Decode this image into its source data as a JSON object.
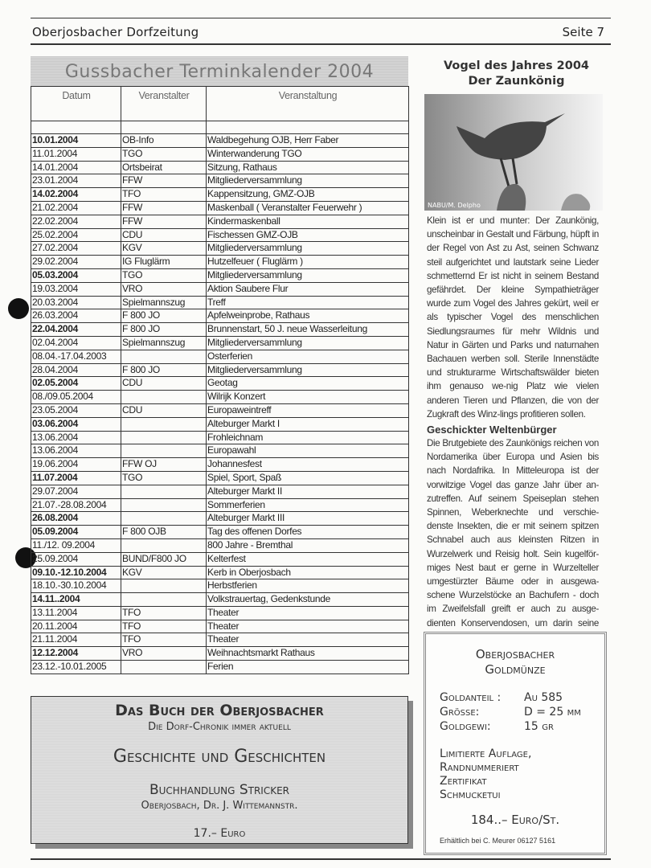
{
  "header": {
    "title": "Oberjosbacher Dorfzeitung",
    "page": "Seite 7"
  },
  "calendar": {
    "title": "Gussbacher Terminkalender 2004",
    "columns": [
      "Datum",
      "Veranstalter",
      "Veranstaltung"
    ],
    "rows": [
      {
        "date": "10.01.2004",
        "org": "OB-Info",
        "event": "Waldbegehung OJB, Herr Faber",
        "bold": true
      },
      {
        "date": "11.01.2004",
        "org": "TGO",
        "event": "Winterwanderung TGO",
        "bold": false
      },
      {
        "date": "14.01.2004",
        "org": "Ortsbeirat",
        "event": "Sitzung, Rathaus",
        "bold": false
      },
      {
        "date": "23.01.2004",
        "org": "FFW",
        "event": "Mitgliederversammlung",
        "bold": false
      },
      {
        "date": "14.02.2004",
        "org": "TFO",
        "event": "Kappensitzung, GMZ-OJB",
        "bold": true
      },
      {
        "date": "21.02.2004",
        "org": "FFW",
        "event": "Maskenball ( Veranstalter Feuerwehr )",
        "bold": false
      },
      {
        "date": "22.02.2004",
        "org": "FFW",
        "event": "Kindermaskenball",
        "bold": false
      },
      {
        "date": "25.02.2004",
        "org": "CDU",
        "event": "Fischessen GMZ-OJB",
        "bold": false
      },
      {
        "date": "27.02.2004",
        "org": "KGV",
        "event": "Mitgliederversammlung",
        "bold": false
      },
      {
        "date": "29.02.2004",
        "org": "IG Fluglärm",
        "event": "Hutzelfeuer ( Fluglärm )",
        "bold": false
      },
      {
        "date": "05.03.2004",
        "org": "TGO",
        "event": "Mitgliederversammlung",
        "bold": true
      },
      {
        "date": "19.03.2004",
        "org": "VRO",
        "event": "Aktion Saubere Flur",
        "bold": false
      },
      {
        "date": "20.03.2004",
        "org": "Spielmannszug",
        "event": "Treff",
        "bold": false
      },
      {
        "date": "26.03.2004",
        "org": "F 800 JO",
        "event": "Apfelweinprobe, Rathaus",
        "bold": false
      },
      {
        "date": "22.04.2004",
        "org": "F 800 JO",
        "event": "Brunnenstart, 50 J. neue Wasserleitung",
        "bold": true
      },
      {
        "date": "02.04.2004",
        "org": "Spielmannszug",
        "event": "Mitgliederversammlung",
        "bold": false
      },
      {
        "date": "08.04.-17.04.2003",
        "org": "",
        "event": "Osterferien",
        "bold": false
      },
      {
        "date": "28.04.2004",
        "org": "F 800 JO",
        "event": "Mitgliederversammlung",
        "bold": false
      },
      {
        "date": "02.05.2004",
        "org": "CDU",
        "event": "Geotag",
        "bold": true
      },
      {
        "date": "08./09.05.2004",
        "org": "",
        "event": "Wilrijk Konzert",
        "bold": false
      },
      {
        "date": "23.05.2004",
        "org": "CDU",
        "event": "Europaweintreff",
        "bold": false
      },
      {
        "date": "03.06.2004",
        "org": "",
        "event": "Alteburger Markt I",
        "bold": true
      },
      {
        "date": "13.06.2004",
        "org": "",
        "event": "Frohleichnam",
        "bold": false
      },
      {
        "date": "13.06.2004",
        "org": "",
        "event": "Europawahl",
        "bold": false
      },
      {
        "date": "19.06.2004",
        "org": "FFW OJ",
        "event": "Johannesfest",
        "bold": false
      },
      {
        "date": "11.07.2004",
        "org": "TGO",
        "event": "Spiel, Sport, Spaß",
        "bold": true
      },
      {
        "date": "29.07.2004",
        "org": "",
        "event": "Alteburger Markt II",
        "bold": false
      },
      {
        "date": "21.07.-28.08.2004",
        "org": "",
        "event": "Sommerferien",
        "bold": false
      },
      {
        "date": "26.08.2004",
        "org": "",
        "event": "Alteburger Markt III",
        "bold": true
      },
      {
        "date": "05.09.2004",
        "org": "F 800 OJB",
        "event": "Tag des offenen Dorfes",
        "bold": true
      },
      {
        "date": "11./12. 09.2004",
        "org": "",
        "event": "800 Jahre -  Bremthal",
        "bold": false
      },
      {
        "date": "25.09.2004",
        "org": "BUND/F800 JO",
        "event": "Kelterfest",
        "bold": false
      },
      {
        "date": "09.10.-12.10.2004",
        "org": "KGV",
        "event": "Kerb in Oberjosbach",
        "bold": true
      },
      {
        "date": "18.10.-30.10.2004",
        "org": "",
        "event": "Herbstferien",
        "bold": false
      },
      {
        "date": "14.11..2004",
        "org": "",
        "event": "Volkstrauertag, Gedenkstunde",
        "bold": true
      },
      {
        "date": "13.11.2004",
        "org": "TFO",
        "event": "Theater",
        "bold": false
      },
      {
        "date": "20.11.2004",
        "org": "TFO",
        "event": "Theater",
        "bold": false
      },
      {
        "date": "21.11.2004",
        "org": "TFO",
        "event": "Theater",
        "bold": false
      },
      {
        "date": "12.12.2004",
        "org": "VRO",
        "event": "Weihnachtsmarkt Rathaus",
        "bold": true
      },
      {
        "date": "23.12.-10.01.2005",
        "org": "",
        "event": "Ferien",
        "bold": false
      }
    ]
  },
  "article": {
    "title_line1": "Vogel des Jahres 2004",
    "title_line2": "Der Zaunkönig",
    "photo_credit": "NABU/M. Delpho",
    "para1": "Klein ist er und munter: Der Zaunkönig, unscheinbar in Gestalt und Färbung, hüpft in der Regel von Ast zu Ast, seinen Schwanz steil aufgerichtet und lautstark seine Lieder schmetternd Er ist nicht in seinem Bestand gefährdet. Der kleine Sympathieträger wurde zum Vogel des Jahres gekürt, weil er als typischer Vogel des menschlichen Siedlungsraumes für mehr Wildnis und Natur in Gärten und Parks und naturnahen Bachauen werben soll. Sterile Innenstädte und strukturarme Wirtschaftswälder bieten ihm genauso we-nig Platz wie vielen anderen Tieren und Pflanzen, die von der Zugkraft des Winz-lings profitieren sollen.",
    "subheading": "Geschickter Weltenbürger",
    "para2": "Die Brutgebiete des Zaunkönigs reichen von Nordamerika über Europa und Asien bis nach Nordafrika. In Mitteleuropa ist der vorwitzige Vogel das ganze Jahr über an-zutreffen. Auf seinem Speiseplan stehen Spinnen, Weberknechte und verschie-denste Insekten, die er mit seinem spitzen Schnabel auch aus kleinsten Ritzen in Wurzelwerk und Reisig holt. Sein kugelför-miges Nest baut er gerne in Wurzelteller umgestürzter Bäume oder in ausgewa-schene Wurzelstöcke an Bachufern - doch im Zweifelsfall greift er auch zu ausge-dienten Konservendosen, um darin seine Brut aufzuziehen."
  },
  "coin_ad": {
    "title1": "Oberjosbacher",
    "title2": "Goldmünze",
    "specs": [
      {
        "label": "Goldanteil :",
        "value": "Au 585"
      },
      {
        "label": "Grösse:",
        "value": "D = 25 mm"
      },
      {
        "label": "Goldgewi:",
        "value": "15 gr"
      }
    ],
    "features": [
      "Limitierte Auflage,",
      "Randnummeriert",
      "Zertifikat",
      "Schmucketui"
    ],
    "price": "184..– Euro/St.",
    "contact": "Erhältlich bei C. Meurer  06127 5161"
  },
  "book_ad": {
    "title": "Das Buch der Oberjosbacher",
    "subtitle": "Die Dorf-Chronik immer aktuell",
    "headline": "Geschichte und Geschichten",
    "shop": "Buchhandlung Stricker",
    "address": "Oberjosbach,  Dr. J. Wittemannstr.",
    "price": "17.– Euro"
  }
}
